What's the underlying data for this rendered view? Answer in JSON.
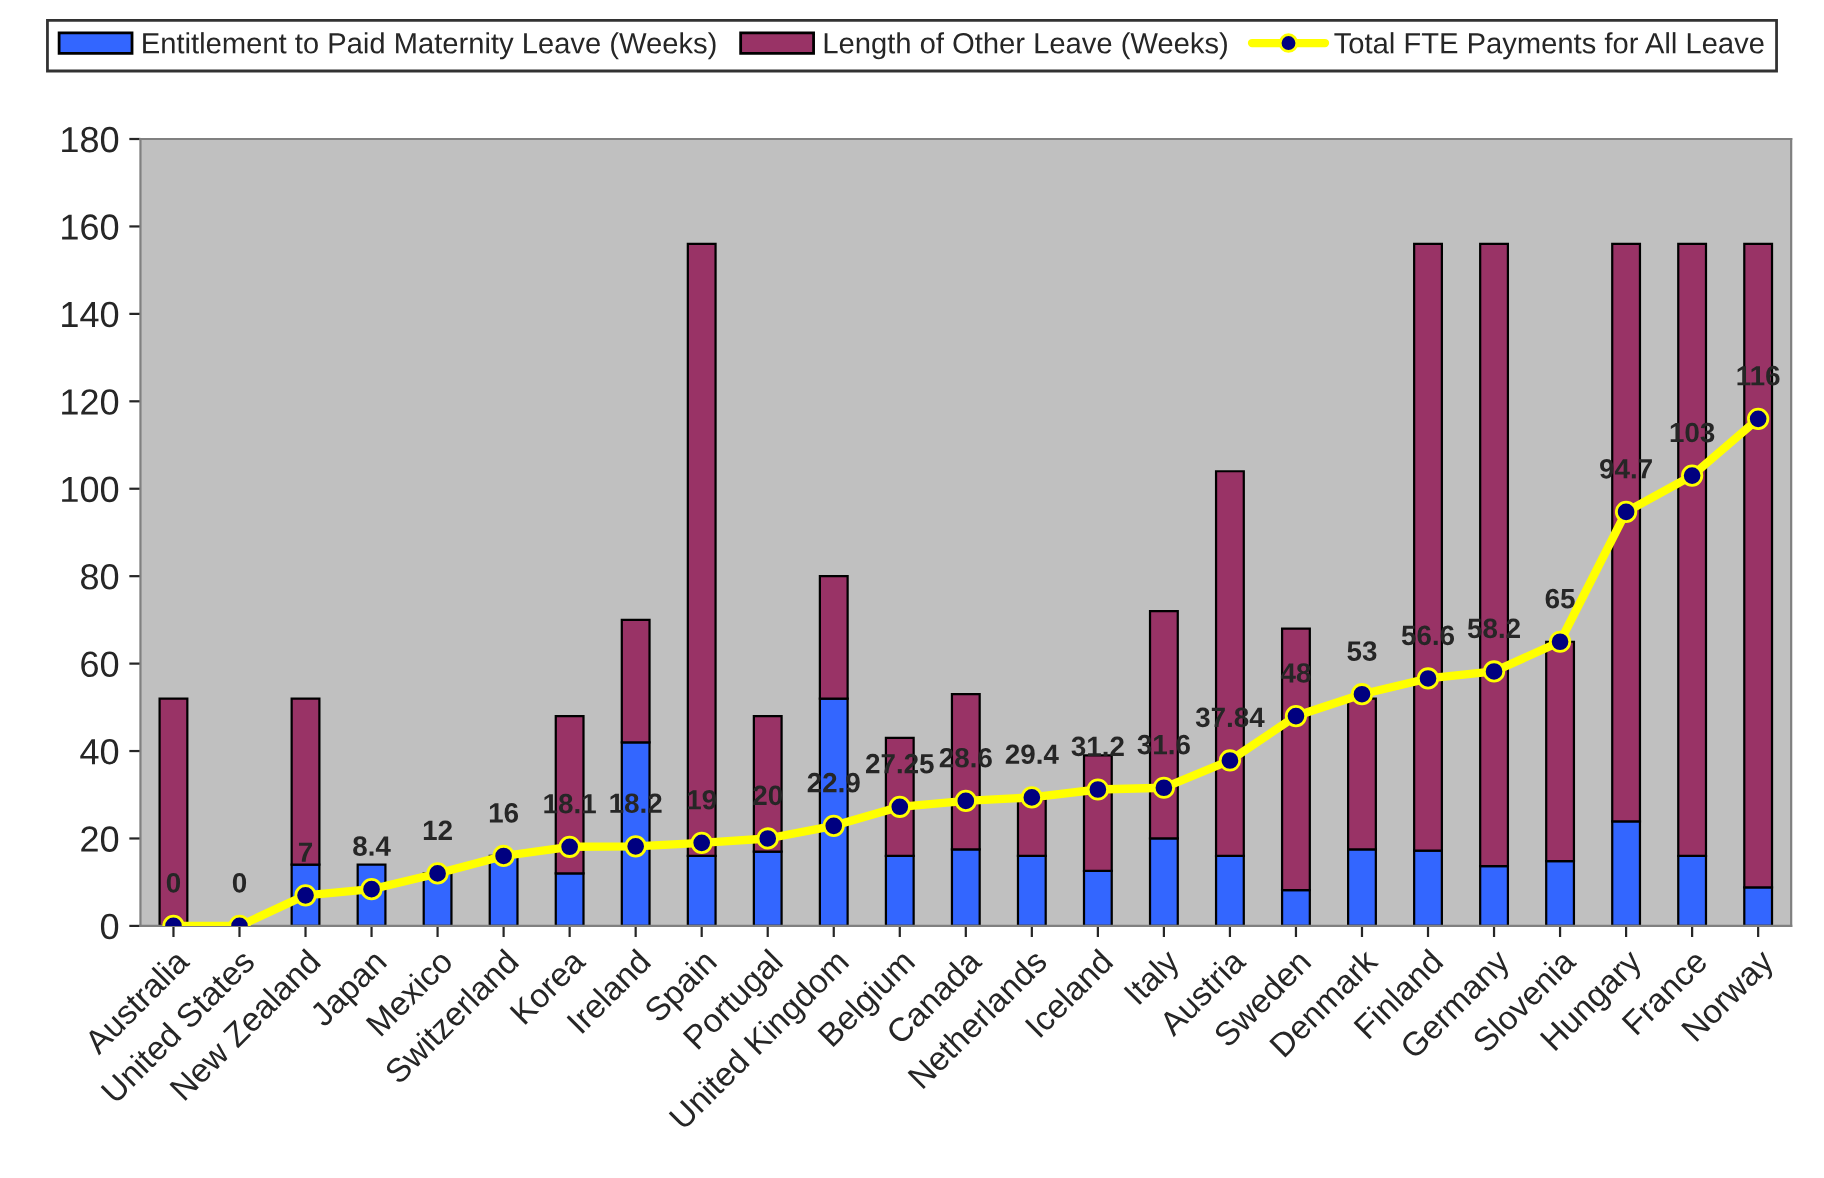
{
  "chart_data": {
    "type": "bar",
    "stacked": true,
    "categories": [
      "Australia",
      "United States",
      "New Zealand",
      "Japan",
      "Mexico",
      "Switzerland",
      "Korea",
      "Ireland",
      "Spain",
      "Portugal",
      "United Kingdom",
      "Belgium",
      "Canada",
      "Netherlands",
      "Iceland",
      "Italy",
      "Austria",
      "Sweden",
      "Denmark",
      "Finland",
      "Germany",
      "Slovenia",
      "Hungary",
      "France",
      "Norway"
    ],
    "series": [
      {
        "name": "Entitlement to Paid Maternity Leave (Weeks)",
        "color": "#3366ff",
        "values": [
          0,
          0,
          14,
          14,
          12,
          16,
          12,
          42,
          16,
          17,
          52,
          16,
          17.5,
          16,
          12.6,
          20,
          16,
          8.2,
          17.5,
          17.2,
          13.7,
          14.8,
          23.9,
          16,
          8.8
        ]
      },
      {
        "name": "Length of Other Leave (Weeks)",
        "color": "#993366",
        "values": [
          52,
          0,
          38,
          0,
          0,
          0,
          36,
          28,
          140,
          31,
          28,
          27,
          35.5,
          13,
          26.4,
          52,
          88,
          59.8,
          34.5,
          138.8,
          142.3,
          50.2,
          132.1,
          140,
          147.2
        ]
      },
      {
        "name": "Total FTE Payments for All Leave",
        "type": "line",
        "color": "#ffff00",
        "marker": "circle",
        "values": [
          0,
          0,
          7,
          8.4,
          12,
          16,
          18.1,
          18.2,
          19,
          20,
          22.9,
          27.25,
          28.6,
          29.4,
          31.2,
          31.6,
          37.84,
          48,
          53,
          56.6,
          58.2,
          65,
          94.7,
          103,
          116
        ],
        "value_labels": [
          "0",
          "0",
          "7",
          "8.4",
          "12",
          "16",
          "18.1",
          "18.2",
          "19",
          "20",
          "22.9",
          "27.25",
          "28.6",
          "29.4",
          "31.2",
          "31.6",
          "37.84",
          "48",
          "53",
          "56.6",
          "58.2",
          "65",
          "94.7",
          "103",
          "116"
        ]
      }
    ],
    "ylim": [
      0,
      180
    ],
    "yticks": [
      0,
      20,
      40,
      60,
      80,
      100,
      120,
      140,
      160,
      180
    ],
    "grid": false,
    "legend": "top"
  }
}
